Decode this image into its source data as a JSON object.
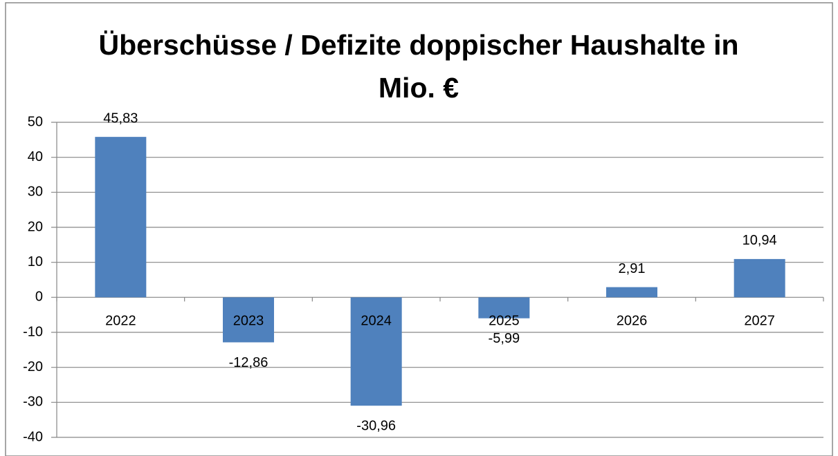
{
  "chart_data": {
    "type": "bar",
    "title": "Überschüsse / Defizite doppischer Haushalte in Mio. €",
    "categories": [
      "2022",
      "2023",
      "2024",
      "2025",
      "2026",
      "2027"
    ],
    "values": [
      45.83,
      -12.86,
      -30.96,
      -5.99,
      2.91,
      10.94
    ],
    "value_labels": [
      "45,83",
      "-12,86",
      "-30,96",
      "-5,99",
      "2,91",
      "10,94"
    ],
    "color": "#4f81bd",
    "ylim": [
      -40,
      50
    ],
    "yticks": [
      50,
      40,
      30,
      20,
      10,
      0,
      -10,
      -20,
      -30,
      -40
    ],
    "grid": true
  }
}
